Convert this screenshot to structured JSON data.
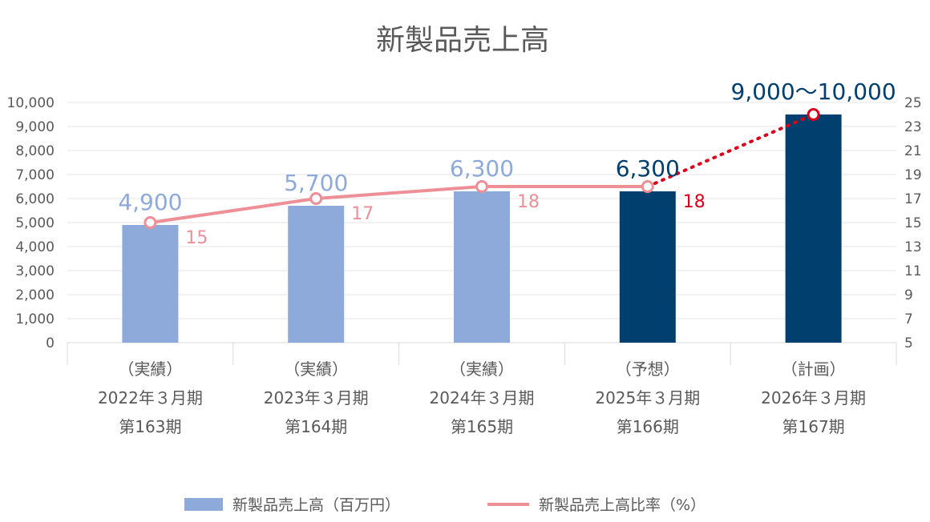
{
  "chart_data": {
    "type": "bar",
    "title": "新製品売上高",
    "categories": [
      [
        "（実績）",
        "2022年３月期",
        "第163期"
      ],
      [
        "（実績）",
        "2023年３月期",
        "第164期"
      ],
      [
        "（実績）",
        "2024年３月期",
        "第165期"
      ],
      [
        "（予想）",
        "2025年３月期",
        "第166期"
      ],
      [
        "（計画）",
        "2026年３月期",
        "第167期"
      ]
    ],
    "series": [
      {
        "name": "新製品売上高（百万円）",
        "type": "bar",
        "axis": "left",
        "values": [
          4900,
          5700,
          6300,
          6300,
          9500
        ],
        "labels": [
          "4,900",
          "5,700",
          "6,300",
          "6,300",
          "9,000〜10,000"
        ],
        "colors": [
          "#8eaadb",
          "#8eaadb",
          "#8eaadb",
          "#003f6e",
          "#003f6e"
        ],
        "label_colors": [
          "#8eaadb",
          "#8eaadb",
          "#8eaadb",
          "#003f6e",
          "#003f6e"
        ]
      },
      {
        "name": "新製品売上高比率（%）",
        "type": "line",
        "axis": "right",
        "values": [
          15,
          17,
          18,
          18,
          24
        ],
        "labels": [
          "15",
          "17",
          "18",
          "18",
          ""
        ],
        "label_colors": [
          "#ee8f98",
          "#ee8f98",
          "#ee8f98",
          "#d9001b",
          ""
        ],
        "line_color": "#ee8f98",
        "forecast_line_color": "#d9001b",
        "forecast_line_style": "dotted"
      }
    ],
    "y_left": {
      "range": [
        0,
        10000
      ],
      "ticks": [
        0,
        1000,
        2000,
        3000,
        4000,
        5000,
        6000,
        7000,
        8000,
        9000,
        10000
      ],
      "tick_labels": [
        "0",
        "1,000",
        "2,000",
        "3,000",
        "4,000",
        "5,000",
        "6,000",
        "7,000",
        "8,000",
        "9,000",
        "10,000"
      ]
    },
    "y_right": {
      "range": [
        5,
        25
      ],
      "ticks": [
        5,
        7,
        9,
        11,
        13,
        15,
        17,
        19,
        21,
        23,
        25
      ],
      "tick_labels": [
        "5",
        "7",
        "9",
        "11",
        "13",
        "15",
        "17",
        "19",
        "21",
        "23",
        "25"
      ]
    },
    "grid": true,
    "legend_position": "bottom"
  }
}
